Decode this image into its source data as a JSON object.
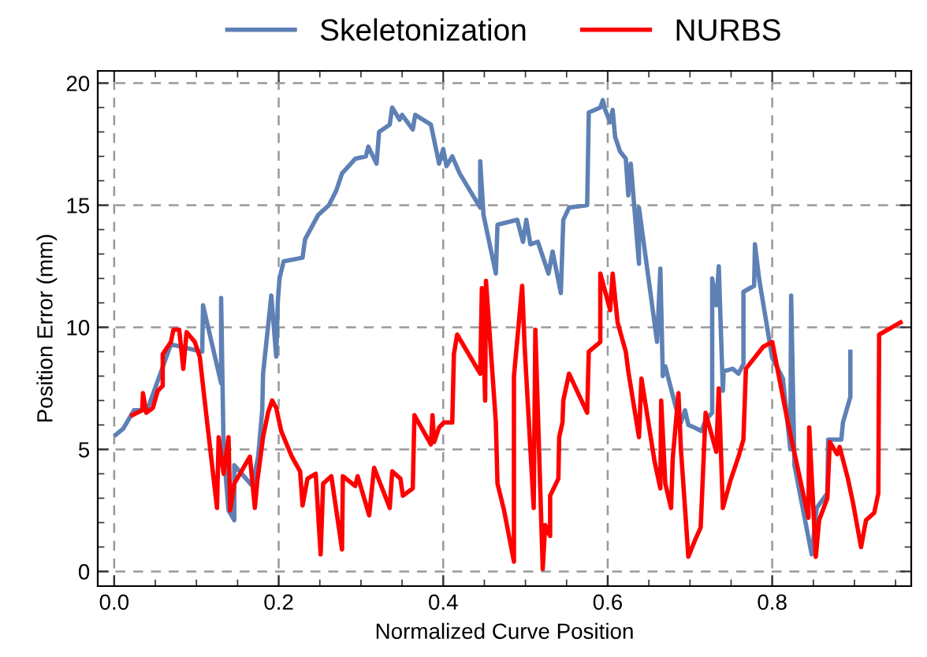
{
  "chart_data": {
    "type": "line",
    "xlabel": "Normalized Curve Position",
    "ylabel": "Position Error (mm)",
    "xlim": [
      -0.02,
      0.969
    ],
    "ylim": [
      -0.6,
      20.5
    ],
    "xticks": [
      {
        "value": 0,
        "label": "0.0"
      },
      0.2,
      0.4,
      0.6,
      0.8
    ],
    "yticks": [
      0,
      5,
      10,
      15,
      20
    ],
    "grid": true,
    "legend": "top",
    "line_style": "solid",
    "marker": "none",
    "series": [
      {
        "name": "Skeletonization",
        "color": "#5e81b5",
        "x": [
          0.002,
          0.011,
          0.024,
          0.04,
          0.069,
          0.107,
          0.108,
          0.13,
          0.13,
          0.133,
          0.139,
          0.146,
          0.146,
          0.168,
          0.175,
          0.18,
          0.181,
          0.191,
          0.197,
          0.199,
          0.201,
          0.206,
          0.229,
          0.232,
          0.248,
          0.261,
          0.27,
          0.277,
          0.293,
          0.306,
          0.309,
          0.319,
          0.322,
          0.335,
          0.338,
          0.347,
          0.35,
          0.363,
          0.366,
          0.385,
          0.395,
          0.4,
          0.404,
          0.411,
          0.42,
          0.445,
          0.445,
          0.449,
          0.464,
          0.466,
          0.49,
          0.497,
          0.501,
          0.506,
          0.515,
          0.528,
          0.533,
          0.543,
          0.546,
          0.553,
          0.575,
          0.577,
          0.591,
          0.594,
          0.597,
          0.603,
          0.606,
          0.609,
          0.615,
          0.622,
          0.625,
          0.628,
          0.638,
          0.638,
          0.66,
          0.664,
          0.667,
          0.67,
          0.683,
          0.689,
          0.694,
          0.698,
          0.705,
          0.714,
          0.719,
          0.727,
          0.727,
          0.732,
          0.735,
          0.74,
          0.741,
          0.752,
          0.759,
          0.765,
          0.765,
          0.778,
          0.779,
          0.784,
          0.8,
          0.813,
          0.822,
          0.823,
          0.827,
          0.848,
          0.854,
          0.867,
          0.868,
          0.884,
          0.886,
          0.895,
          0.895
        ],
        "values": [
          5.6,
          5.85,
          6.6,
          6.6,
          9.3,
          9.0,
          10.9,
          7.7,
          11.2,
          5.0,
          2.5,
          2.1,
          4.35,
          3.5,
          4.7,
          6.6,
          8.1,
          11.3,
          8.8,
          11.1,
          12.0,
          12.7,
          12.85,
          13.6,
          14.6,
          15.0,
          15.6,
          16.3,
          16.9,
          17.0,
          17.4,
          16.7,
          18.0,
          18.3,
          19.0,
          18.5,
          18.7,
          18.1,
          18.7,
          18.3,
          16.7,
          17.3,
          16.6,
          17.0,
          16.3,
          14.9,
          16.8,
          14.6,
          12.2,
          14.2,
          14.4,
          13.5,
          14.4,
          13.4,
          13.5,
          12.2,
          13.1,
          11.4,
          14.4,
          14.9,
          15.0,
          18.8,
          19.0,
          19.3,
          18.9,
          18.4,
          18.9,
          17.8,
          17.2,
          16.9,
          15.4,
          16.7,
          12.6,
          14.9,
          9.4,
          12.4,
          8.0,
          8.4,
          6.7,
          6.1,
          6.6,
          6.0,
          5.9,
          5.75,
          6.2,
          6.5,
          12.0,
          10.9,
          12.5,
          7.4,
          8.2,
          8.3,
          8.1,
          8.5,
          11.45,
          11.7,
          13.4,
          12.0,
          8.75,
          7.9,
          5.0,
          11.3,
          4.35,
          0.7,
          2.6,
          3.2,
          5.4,
          5.4,
          6.1,
          7.15,
          9.0
        ]
      },
      {
        "name": "NURBS",
        "color": "#ff0000",
        "x": [
          0.022,
          0.034,
          0.035,
          0.039,
          0.047,
          0.053,
          0.059,
          0.059,
          0.069,
          0.072,
          0.079,
          0.08,
          0.084,
          0.088,
          0.098,
          0.104,
          0.111,
          0.125,
          0.127,
          0.133,
          0.139,
          0.141,
          0.146,
          0.165,
          0.171,
          0.174,
          0.181,
          0.187,
          0.192,
          0.197,
          0.203,
          0.216,
          0.226,
          0.229,
          0.235,
          0.245,
          0.251,
          0.254,
          0.264,
          0.277,
          0.278,
          0.293,
          0.296,
          0.31,
          0.316,
          0.335,
          0.338,
          0.348,
          0.351,
          0.363,
          0.365,
          0.385,
          0.387,
          0.389,
          0.395,
          0.401,
          0.411,
          0.413,
          0.417,
          0.445,
          0.447,
          0.451,
          0.452,
          0.464,
          0.466,
          0.474,
          0.486,
          0.486,
          0.496,
          0.499,
          0.51,
          0.512,
          0.521,
          0.524,
          0.53,
          0.53,
          0.54,
          0.541,
          0.545,
          0.546,
          0.553,
          0.575,
          0.577,
          0.591,
          0.591,
          0.603,
          0.606,
          0.612,
          0.622,
          0.625,
          0.638,
          0.641,
          0.657,
          0.664,
          0.665,
          0.67,
          0.677,
          0.679,
          0.686,
          0.689,
          0.695,
          0.698,
          0.707,
          0.713,
          0.719,
          0.732,
          0.735,
          0.74,
          0.749,
          0.759,
          0.765,
          0.768,
          0.789,
          0.8,
          0.819,
          0.844,
          0.845,
          0.853,
          0.857,
          0.867,
          0.87,
          0.879,
          0.882,
          0.892,
          0.898,
          0.908,
          0.914,
          0.924,
          0.929,
          0.93,
          0.956
        ],
        "values": [
          6.4,
          6.6,
          7.3,
          6.5,
          6.7,
          7.4,
          7.6,
          8.9,
          9.4,
          9.9,
          9.9,
          9.6,
          8.3,
          9.8,
          9.4,
          8.8,
          6.7,
          2.6,
          5.5,
          4.0,
          5.5,
          2.5,
          3.6,
          4.7,
          2.6,
          3.7,
          5.5,
          6.5,
          7.0,
          6.7,
          5.75,
          4.7,
          4.1,
          2.7,
          3.8,
          4.0,
          0.7,
          3.6,
          3.9,
          0.9,
          3.9,
          3.5,
          3.9,
          2.3,
          4.25,
          2.6,
          4.1,
          3.8,
          3.1,
          3.4,
          6.4,
          5.2,
          6.4,
          5.3,
          5.9,
          6.1,
          6.1,
          8.9,
          9.7,
          8.1,
          11.6,
          7.0,
          11.9,
          6.1,
          3.6,
          2.5,
          0.4,
          8.0,
          11.7,
          9.2,
          2.6,
          9.9,
          0.1,
          1.9,
          1.45,
          3.1,
          3.8,
          5.5,
          6.1,
          7.0,
          8.1,
          6.5,
          9.0,
          9.4,
          12.2,
          10.7,
          12.2,
          10.2,
          9.0,
          8.2,
          5.5,
          7.9,
          4.5,
          3.4,
          7.0,
          3.6,
          2.6,
          4.6,
          7.3,
          5.0,
          2.1,
          0.6,
          1.35,
          1.8,
          6.5,
          4.9,
          7.5,
          2.6,
          3.7,
          4.7,
          5.4,
          8.3,
          9.2,
          9.4,
          6.1,
          2.2,
          5.9,
          0.6,
          2.1,
          3.0,
          5.3,
          4.8,
          5.1,
          3.8,
          2.85,
          1.0,
          2.1,
          2.4,
          3.2,
          9.7,
          10.2
        ]
      }
    ]
  }
}
